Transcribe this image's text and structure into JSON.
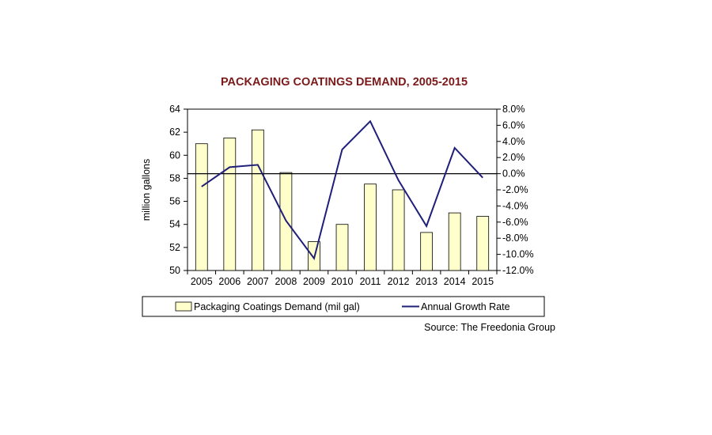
{
  "colors": {
    "title": "#7b1a1a",
    "bar_fill": "#ffffcc",
    "bar_stroke": "#000000",
    "line": "#1f1f7a",
    "axis": "#000000"
  },
  "chart_data": {
    "type": "bar",
    "title": "PACKAGING COATINGS DEMAND, 2005-2015",
    "ylabel": "million gallons",
    "categories": [
      "2005",
      "2006",
      "2007",
      "2008",
      "2009",
      "2010",
      "2011",
      "2012",
      "2013",
      "2014",
      "2015"
    ],
    "ylim": [
      50,
      64
    ],
    "yticks": [
      "50",
      "52",
      "54",
      "56",
      "58",
      "60",
      "62",
      "64"
    ],
    "y2lim": [
      -12,
      8
    ],
    "y2ticks": [
      "8.0%",
      "6.0%",
      "4.0%",
      "2.0%",
      "0.0%",
      "-2.0%",
      "-4.0%",
      "-6.0%",
      "-8.0%",
      "-10.0%",
      "-12.0%"
    ],
    "y2tick_values": [
      8,
      6,
      4,
      2,
      0,
      -2,
      -4,
      -6,
      -8,
      -10,
      -12
    ],
    "series": [
      {
        "name": "Packaging Coatings Demand (mil gal)",
        "type": "bar",
        "axis": "left",
        "values": [
          61.0,
          61.5,
          62.2,
          58.5,
          52.5,
          54.0,
          57.5,
          57.0,
          53.3,
          55.0,
          54.7
        ]
      },
      {
        "name": "Annual Growth Rate",
        "type": "line",
        "axis": "right",
        "values": [
          -1.6,
          0.8,
          1.1,
          -5.8,
          -10.5,
          3.0,
          6.5,
          -0.8,
          -6.5,
          3.2,
          -0.5
        ]
      }
    ],
    "reference_line_y2": 0,
    "grid": false,
    "legend": "bottom",
    "source": "Source: The Freedonia Group"
  }
}
